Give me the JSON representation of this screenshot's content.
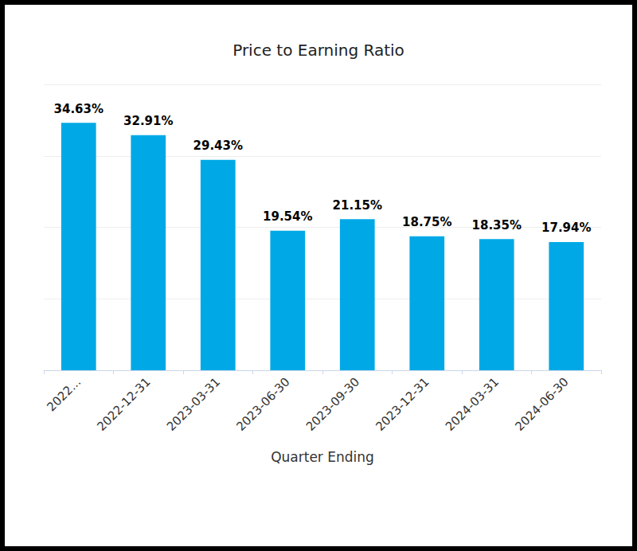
{
  "chart_data": {
    "type": "bar",
    "title": "Price to Earning Ratio",
    "x_label": "Quarter Ending",
    "categories": [
      "2022...",
      "2022-12-31",
      "2023-03-31",
      "2023-06-30",
      "2023-09-30",
      "2023-12-31",
      "2024-03-31",
      "2024-06-30"
    ],
    "values": [
      34.63,
      32.91,
      29.43,
      19.54,
      21.15,
      18.75,
      18.35,
      17.94
    ],
    "value_labels": [
      "34.63%",
      "32.91%",
      "29.43%",
      "19.54%",
      "21.15%",
      "18.75%",
      "18.35%",
      "17.94%"
    ],
    "color": "#00a9e6",
    "ylim": [
      0,
      40
    ],
    "yticks": [
      0,
      10,
      20,
      30,
      40
    ],
    "grid": true,
    "data_labels": true,
    "tick_labels": "x"
  }
}
